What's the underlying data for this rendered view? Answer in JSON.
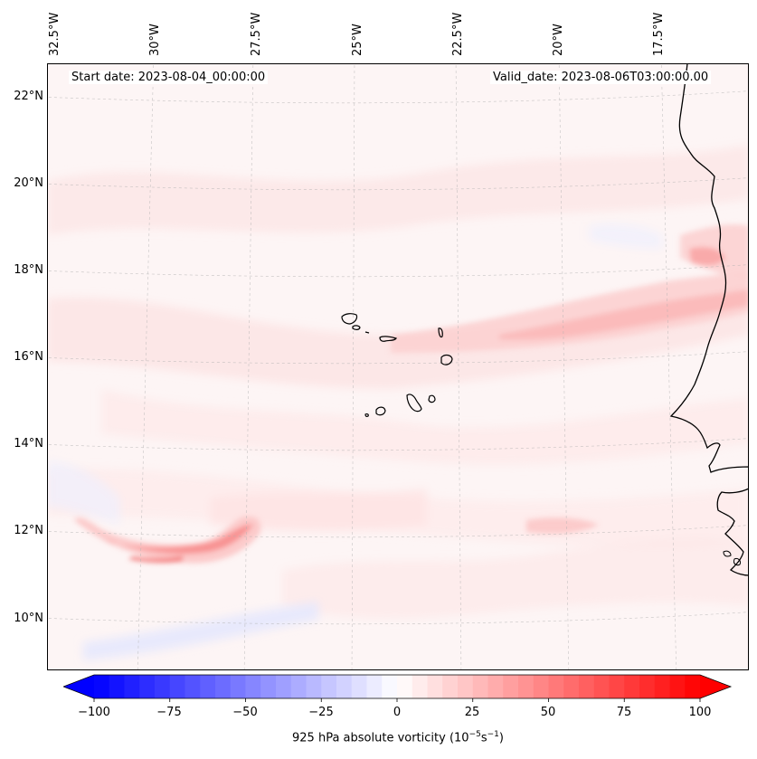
{
  "header": {
    "start_date": "Start date: 2023-08-04_00:00:00",
    "valid_date": "Valid_date: 2023-08-06T03:00:00.00"
  },
  "map": {
    "lon_labels": [
      "32.5°W",
      "30°W",
      "27.5°W",
      "25°W",
      "22.5°W",
      "20°W",
      "17.5°W"
    ],
    "lat_labels": [
      "22°N",
      "20°N",
      "18°N",
      "16°N",
      "14°N",
      "12°N",
      "10°N"
    ],
    "extent": {
      "lon_min": -33,
      "lon_max": -16,
      "lat_min": 9,
      "lat_max": 22.7
    },
    "projection": "lambert-conformal",
    "gridlines": true,
    "background_color": "#fdf5f5",
    "coastline_color": "#000000"
  },
  "colorbar": {
    "ticks": [
      "−100",
      "−75",
      "−50",
      "−25",
      "0",
      "25",
      "50",
      "75",
      "100"
    ],
    "label_main": "925 hPa absolute vorticity (10",
    "label_exp1": "−5",
    "label_mid": "s",
    "label_exp2": "−1",
    "label_end": ")",
    "vmin": -100,
    "vmax": 100,
    "cmap": "bwr",
    "extend": "both",
    "low_color": "#0000ff",
    "mid_color": "#ffffff",
    "high_color": "#ff0000"
  },
  "field_features": [
    {
      "name": "Positive vorticity streak south-west",
      "peak_value": 45
    },
    {
      "name": "Positive vorticity band east",
      "peak_value": 25
    },
    {
      "name": "Negative vorticity patch south",
      "peak_value": -12
    }
  ]
}
